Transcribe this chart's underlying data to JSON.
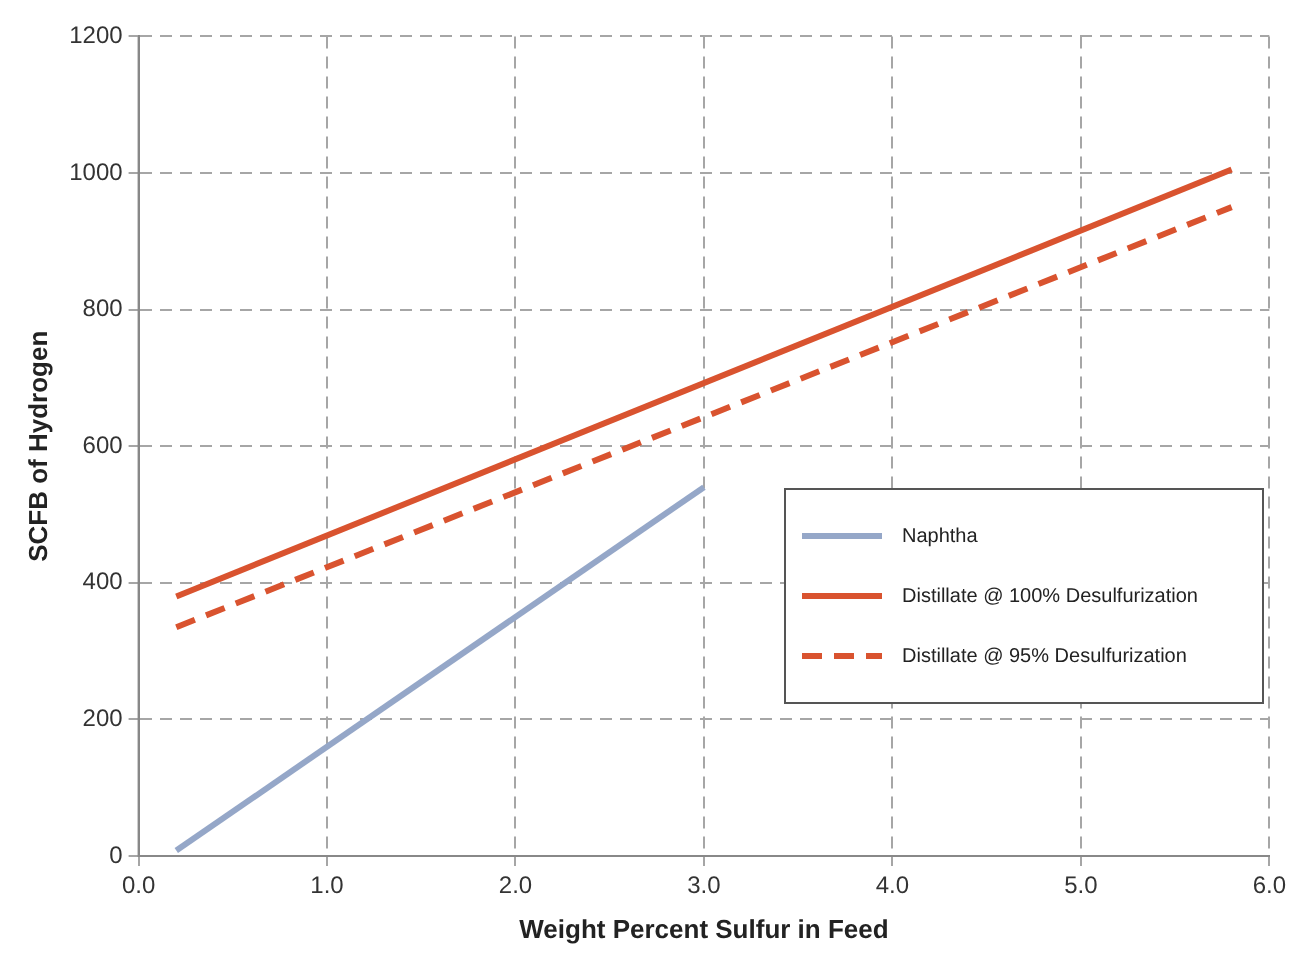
{
  "chart_data": {
    "type": "line",
    "xlabel": "Weight Percent Sulfur in Feed",
    "ylabel": "SCFB of Hydrogen",
    "series": [
      {
        "name": "Naphtha",
        "color": "#95a7c8",
        "x": [
          0.2,
          3.0
        ],
        "values": [
          8,
          540
        ]
      },
      {
        "name": "Distillate @ 100% Desulfurization",
        "color": "#d9532f",
        "x": [
          0.2,
          5.8
        ],
        "values": [
          380,
          1005
        ]
      },
      {
        "name": "Distillate @ 95% Desulfurization",
        "color": "#d9532f",
        "x": [
          0.2,
          5.8
        ],
        "values": [
          335,
          950
        ],
        "line_style": "dashed"
      }
    ],
    "xlim": [
      0,
      6
    ],
    "xticks": [
      {
        "value": 0,
        "label": "0.0"
      },
      {
        "value": 1,
        "label": "1.0"
      },
      {
        "value": 2,
        "label": "2.0"
      },
      {
        "value": 3,
        "label": "3.0"
      },
      {
        "value": 4,
        "label": "4.0"
      },
      {
        "value": 5,
        "label": "5.0"
      },
      {
        "value": 6,
        "label": "6.0"
      }
    ],
    "ylim": [
      0,
      1200
    ],
    "yticks": [
      0,
      200,
      400,
      600,
      800,
      1000,
      1200
    ],
    "grid": true,
    "legend": "right",
    "marker": "none",
    "line_style": "solid"
  }
}
